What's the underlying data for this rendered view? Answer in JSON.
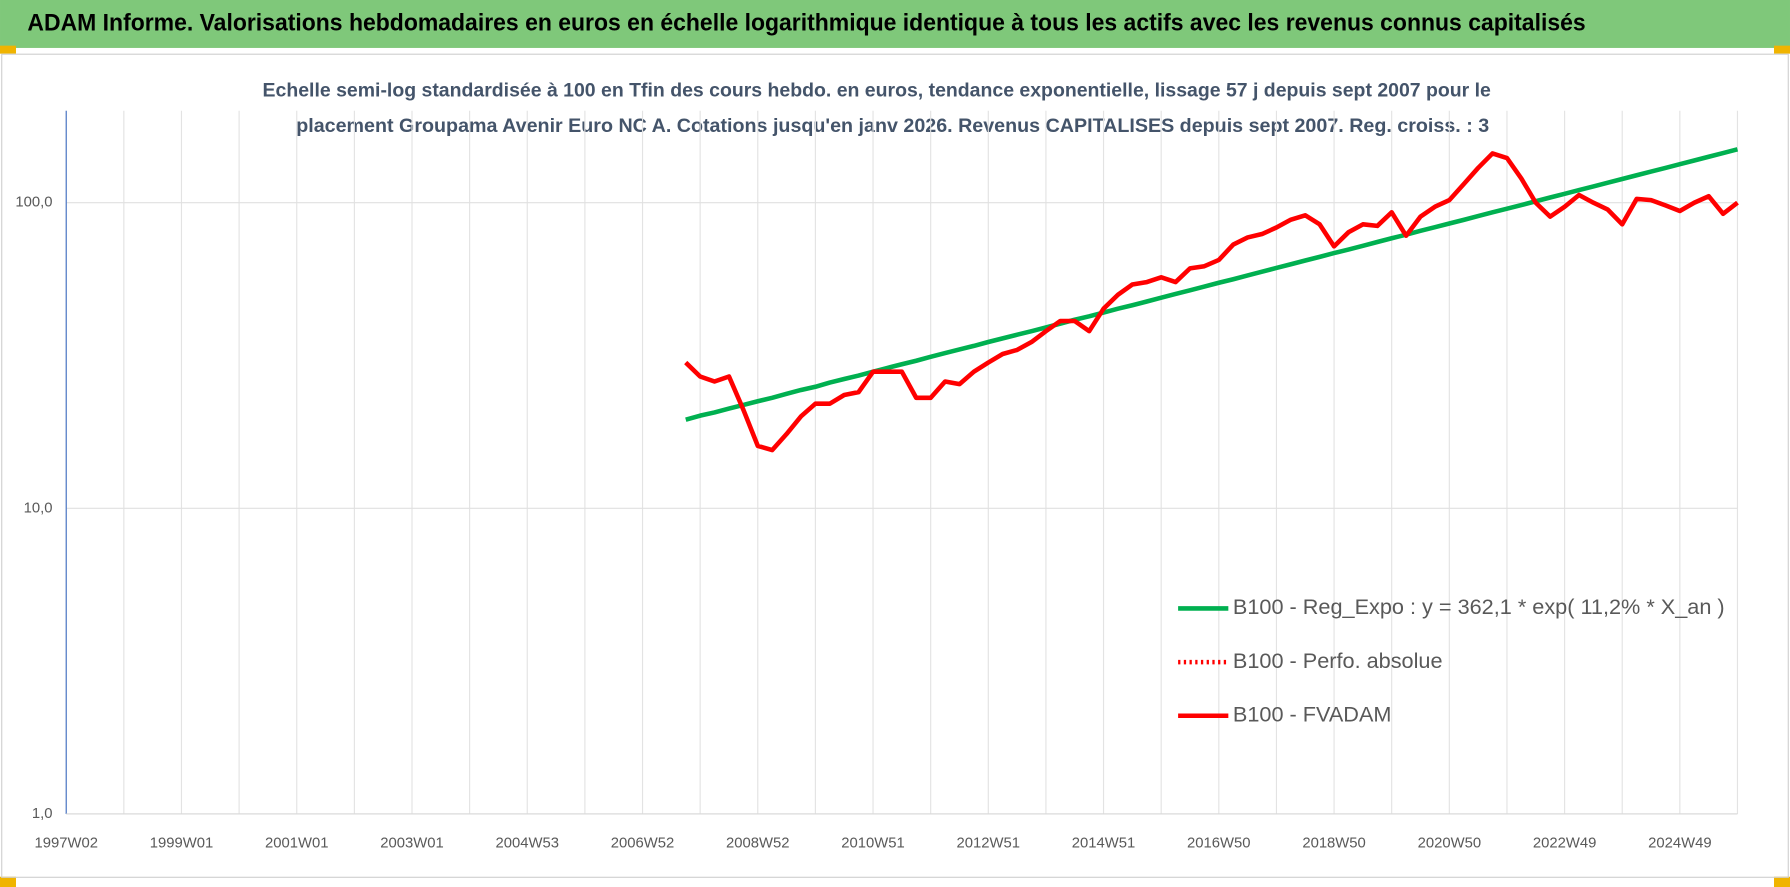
{
  "chart_data": {
    "type": "line",
    "header": "ADAM Informe. Valorisations hebdomadaires en euros en échelle logarithmique identique à tous les actifs avec les revenus connus capitalisés",
    "subtitle": [
      "Echelle semi-log standardisée à 100 en Tfin des cours hebdo. en euros, tendance exponentielle, lissage 57 j depuis sept 2007 pour le",
      "placement Groupama Avenir Euro NC A. Cotations jusqu'en janv 2026. Revenus CAPITALISES depuis sept 2007. Reg. croiss. : 3"
    ],
    "log_scale": true,
    "grid": true,
    "legend": "lower right",
    "ylim": [
      1,
      200
    ],
    "yticks": [
      {
        "value": 1,
        "label": "1,0"
      },
      {
        "value": 10,
        "label": "10,0"
      },
      {
        "value": 100,
        "label": "100,0"
      }
    ],
    "categories": [
      "1997W02",
      null,
      null,
      null,
      null,
      null,
      null,
      null,
      "1999W01",
      null,
      null,
      null,
      null,
      null,
      null,
      null,
      "2001W01",
      null,
      null,
      null,
      null,
      null,
      null,
      null,
      "2003W01",
      null,
      null,
      null,
      null,
      null,
      null,
      null,
      "2004W53",
      null,
      null,
      null,
      null,
      null,
      null,
      null,
      "2006W52",
      null,
      null,
      null,
      null,
      null,
      null,
      null,
      "2008W52",
      null,
      null,
      null,
      null,
      null,
      null,
      null,
      "2010W51",
      null,
      null,
      null,
      null,
      null,
      null,
      null,
      "2012W51",
      null,
      null,
      null,
      null,
      null,
      null,
      null,
      "2014W51",
      null,
      null,
      null,
      null,
      null,
      null,
      null,
      "2016W50",
      null,
      null,
      null,
      null,
      null,
      null,
      null,
      "2018W50",
      null,
      null,
      null,
      null,
      null,
      null,
      null,
      "2020W50",
      null,
      null,
      null,
      null,
      null,
      null,
      null,
      "2022W49",
      null,
      null,
      null,
      null,
      null,
      null,
      null,
      "2024W49",
      null,
      null,
      null,
      null
    ],
    "series": [
      {
        "name": "B100 - Reg_Expo : y = 362,1 * exp( 11,2% *  X_an )",
        "color": "#00b050",
        "style": "solid",
        "values": [
          null,
          null,
          null,
          null,
          null,
          null,
          null,
          null,
          null,
          null,
          null,
          null,
          null,
          null,
          null,
          null,
          null,
          null,
          null,
          null,
          null,
          null,
          null,
          null,
          null,
          null,
          null,
          null,
          null,
          null,
          null,
          null,
          null,
          null,
          null,
          null,
          null,
          null,
          null,
          null,
          null,
          null,
          null,
          19.5,
          20.1,
          20.6,
          21.2,
          21.8,
          22.4,
          23.0,
          23.7,
          24.4,
          25.0,
          25.8,
          26.5,
          27.2,
          28.0,
          28.8,
          29.6,
          30.4,
          31.3,
          32.2,
          33.1,
          34.0,
          35.0,
          36.0,
          37.0,
          38.0,
          39.1,
          40.2,
          41.4,
          42.5,
          43.7,
          45.0,
          46.2,
          47.5,
          48.9,
          50.3,
          51.7,
          53.2,
          54.7,
          56.2,
          57.8,
          59.5,
          61.2,
          62.9,
          64.7,
          66.5,
          68.4,
          70.3,
          72.3,
          74.4,
          76.5,
          78.6,
          80.9,
          83.2,
          85.5,
          87.9,
          90.4,
          93.0,
          95.6,
          98.3,
          101.1,
          104.0,
          106.9,
          110.0,
          113.1,
          116.3,
          119.6,
          123.0,
          126.4,
          130.0,
          133.7,
          137.5,
          141.4,
          145.4,
          149.5
        ]
      },
      {
        "name": "B100 - Perfo. absolue",
        "color": "#ff0000",
        "style": "dotted",
        "values": [
          null,
          null,
          null,
          null,
          null,
          null,
          null,
          null,
          null,
          null,
          null,
          null,
          null,
          null,
          null,
          null,
          null,
          null,
          null,
          null,
          null,
          null,
          null,
          null,
          null,
          null,
          null,
          null,
          null,
          null,
          null,
          null,
          null,
          null,
          null,
          null,
          null,
          null,
          null,
          null,
          null,
          null,
          null,
          30,
          27,
          26,
          27,
          21,
          16,
          15.5,
          17.5,
          20,
          22,
          22,
          23.5,
          24,
          28,
          28,
          28,
          23,
          23,
          26,
          25.5,
          28,
          30,
          32,
          33,
          35,
          38,
          41,
          41,
          38,
          45,
          50,
          54,
          55,
          57,
          55,
          61,
          62,
          65,
          73,
          77,
          79,
          83,
          88,
          91,
          85,
          72,
          80,
          85,
          84,
          93,
          78,
          90,
          97,
          102,
          115,
          130,
          145,
          140,
          120,
          100,
          90,
          97,
          106,
          100,
          95,
          85,
          103,
          102,
          98,
          94,
          100,
          105,
          92,
          100
        ]
      },
      {
        "name": "B100 - FVADAM",
        "color": "#ff0000",
        "style": "solid",
        "values": [
          null,
          null,
          null,
          null,
          null,
          null,
          null,
          null,
          null,
          null,
          null,
          null,
          null,
          null,
          null,
          null,
          null,
          null,
          null,
          null,
          null,
          null,
          null,
          null,
          null,
          null,
          null,
          null,
          null,
          null,
          null,
          null,
          null,
          null,
          null,
          null,
          null,
          null,
          null,
          null,
          null,
          null,
          null,
          30,
          27,
          26,
          27,
          21,
          16,
          15.5,
          17.5,
          20,
          22,
          22,
          23.5,
          24,
          28,
          28,
          28,
          23,
          23,
          26,
          25.5,
          28,
          30,
          32,
          33,
          35,
          38,
          41,
          41,
          38,
          45,
          50,
          54,
          55,
          57,
          55,
          61,
          62,
          65,
          73,
          77,
          79,
          83,
          88,
          91,
          85,
          72,
          80,
          85,
          84,
          93,
          78,
          90,
          97,
          102,
          115,
          130,
          145,
          140,
          120,
          100,
          90,
          97,
          106,
          100,
          95,
          85,
          103,
          102,
          98,
          94,
          100,
          105,
          92,
          100
        ]
      }
    ]
  }
}
